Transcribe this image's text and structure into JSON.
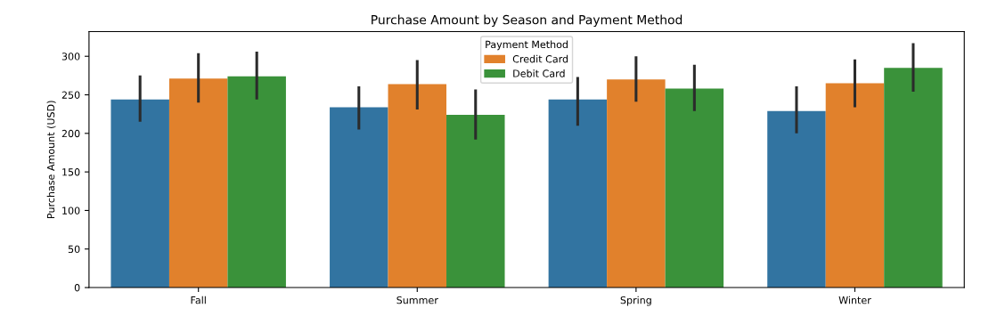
{
  "chart_data": {
    "type": "bar",
    "title": "Purchase Amount by Season and Payment Method",
    "ylabel": "Purchase Amount (USD)",
    "legend_title": "Payment Method",
    "categories": [
      "Fall",
      "Summer",
      "Spring",
      "Winter"
    ],
    "series": [
      {
        "color": "#3274a1",
        "values": [
          244,
          234,
          244,
          229
        ],
        "errors": [
          [
            215,
            275
          ],
          [
            205,
            261
          ],
          [
            210,
            273
          ],
          [
            200,
            261
          ]
        ]
      },
      {
        "name": "Credit Card",
        "color": "#e1812c",
        "values": [
          271,
          264,
          270,
          265
        ],
        "errors": [
          [
            240,
            304
          ],
          [
            231,
            295
          ],
          [
            241,
            300
          ],
          [
            234,
            296
          ]
        ]
      },
      {
        "name": "Debit Card",
        "color": "#3a923a",
        "values": [
          274,
          224,
          258,
          285
        ],
        "errors": [
          [
            244,
            306
          ],
          [
            192,
            257
          ],
          [
            229,
            289
          ],
          [
            254,
            317
          ]
        ]
      }
    ],
    "ylim": [
      0,
      332
    ],
    "yticks": [
      0,
      50,
      100,
      150,
      200,
      250,
      300
    ],
    "grid": false,
    "legend": "top"
  }
}
